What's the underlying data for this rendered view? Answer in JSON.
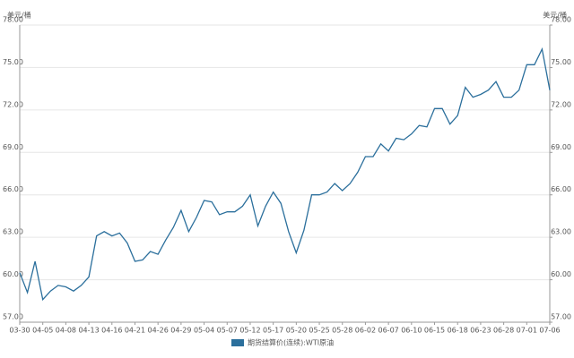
{
  "chart_data": {
    "type": "line",
    "y_label": "美元/桶",
    "y2_label": "美元/桶",
    "categories": [
      "03-30",
      null,
      null,
      "04-05",
      null,
      null,
      "04-08",
      null,
      null,
      "04-13",
      null,
      null,
      "04-16",
      null,
      null,
      "04-21",
      null,
      null,
      "04-26",
      null,
      null,
      "04-29",
      null,
      null,
      "05-04",
      null,
      null,
      "05-07",
      null,
      null,
      "05-12",
      null,
      null,
      "05-17",
      null,
      null,
      "05-20",
      null,
      null,
      "05-25",
      null,
      null,
      "05-28",
      null,
      null,
      "06-02",
      null,
      null,
      "06-07",
      null,
      null,
      "06-10",
      null,
      null,
      "06-15",
      null,
      null,
      "06-18",
      null,
      null,
      "06-23",
      null,
      null,
      "06-28",
      null,
      null,
      "07-01",
      null,
      null,
      "07-06"
    ],
    "series": [
      {
        "name": "期货结算价(连续):WTI原油",
        "color": "#2b6f9c",
        "values": [
          60.5,
          59.1,
          61.3,
          58.6,
          59.2,
          59.6,
          59.5,
          59.2,
          59.6,
          60.2,
          63.1,
          63.4,
          63.1,
          63.3,
          62.6,
          61.3,
          61.4,
          62.0,
          61.8,
          62.8,
          63.7,
          64.9,
          63.4,
          64.4,
          65.6,
          65.5,
          64.6,
          64.8,
          64.8,
          65.2,
          66.0,
          63.8,
          65.2,
          66.2,
          65.4,
          63.4,
          61.9,
          63.5,
          66.0,
          66.0,
          66.2,
          66.8,
          66.3,
          66.8,
          67.6,
          68.7,
          68.7,
          69.6,
          69.1,
          70.0,
          69.9,
          70.3,
          70.9,
          70.8,
          72.1,
          72.1,
          71.0,
          71.6,
          73.6,
          72.9,
          73.1,
          73.4,
          74.0,
          72.9,
          72.9,
          73.4,
          75.2,
          75.2,
          76.3,
          73.4
        ]
      }
    ],
    "ylim": [
      57,
      78
    ],
    "yticks": [
      {
        "value": 57,
        "label": "57.00"
      },
      {
        "value": 60,
        "label": "60.00"
      },
      {
        "value": 63,
        "label": "63.00"
      },
      {
        "value": 66,
        "label": "66.00"
      },
      {
        "value": 69,
        "label": "69.00"
      },
      {
        "value": 72,
        "label": "72.00"
      },
      {
        "value": 75,
        "label": "75.00"
      },
      {
        "value": 78,
        "label": "78.00"
      }
    ],
    "y2lim": [
      57,
      78
    ],
    "y2ticks": [
      {
        "value": 57,
        "label": "57.00"
      },
      {
        "value": 60,
        "label": "60.00"
      },
      {
        "value": 63,
        "label": "63.00"
      },
      {
        "value": 66,
        "label": "66.00"
      },
      {
        "value": 69,
        "label": "69.00"
      },
      {
        "value": 72,
        "label": "72.00"
      },
      {
        "value": 75,
        "label": "75.00"
      },
      {
        "value": 78,
        "label": "78.00"
      }
    ],
    "grid": true,
    "legend": "bottom"
  }
}
